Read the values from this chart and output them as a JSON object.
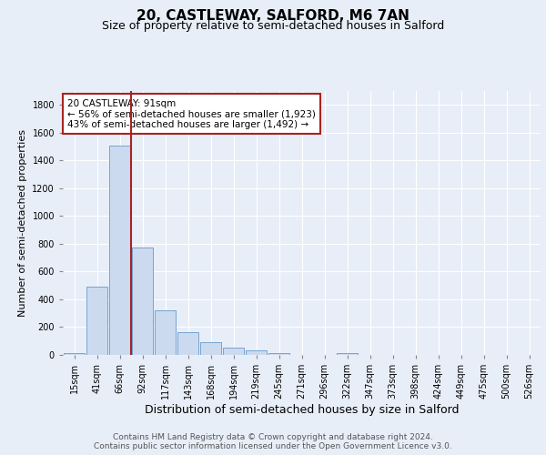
{
  "title": "20, CASTLEWAY, SALFORD, M6 7AN",
  "subtitle": "Size of property relative to semi-detached houses in Salford",
  "xlabel": "Distribution of semi-detached houses by size in Salford",
  "ylabel": "Number of semi-detached properties",
  "footer_line1": "Contains HM Land Registry data © Crown copyright and database right 2024.",
  "footer_line2": "Contains public sector information licensed under the Open Government Licence v3.0.",
  "bar_labels": [
    "15sqm",
    "41sqm",
    "66sqm",
    "92sqm",
    "117sqm",
    "143sqm",
    "168sqm",
    "194sqm",
    "219sqm",
    "245sqm",
    "271sqm",
    "296sqm",
    "322sqm",
    "347sqm",
    "373sqm",
    "398sqm",
    "424sqm",
    "449sqm",
    "475sqm",
    "500sqm",
    "526sqm"
  ],
  "bar_values": [
    15,
    490,
    1510,
    775,
    320,
    165,
    90,
    50,
    30,
    15,
    0,
    0,
    15,
    0,
    0,
    0,
    0,
    0,
    0,
    0,
    0
  ],
  "property_label": "20 CASTLEWAY: 91sqm",
  "annotation_line1": "← 56% of semi-detached houses are smaller (1,923)",
  "annotation_line2": "43% of semi-detached houses are larger (1,492) →",
  "bar_color": "#ccdaf0",
  "bar_edge_color": "#6699cc",
  "vline_color": "#aa2222",
  "annotation_box_edge": "#aa2222",
  "ylim": [
    0,
    1900
  ],
  "yticks": [
    0,
    200,
    400,
    600,
    800,
    1000,
    1200,
    1400,
    1600,
    1800
  ],
  "bg_color": "#e8eef8",
  "plot_bg_color": "#e8eef8",
  "grid_color": "#ffffff",
  "title_fontsize": 11,
  "subtitle_fontsize": 9,
  "ylabel_fontsize": 8,
  "xlabel_fontsize": 9,
  "tick_fontsize": 7,
  "annotation_fontsize": 7.5,
  "footer_fontsize": 6.5
}
